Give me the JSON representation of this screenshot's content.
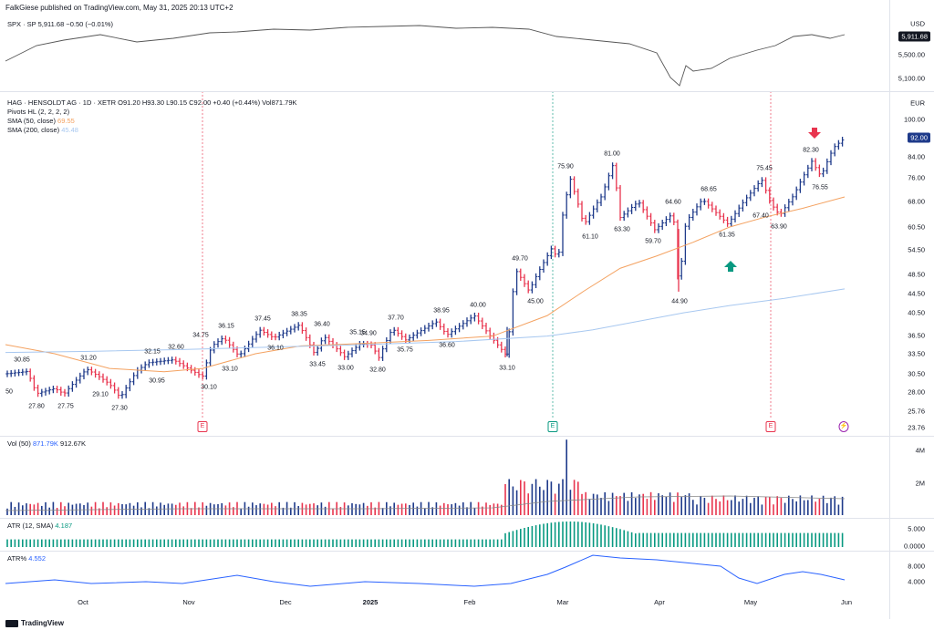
{
  "header": {
    "text": "FalkGiese published on TradingView.com, May 31, 2025 20:13 UTC+2"
  },
  "spx": {
    "label": "SPX · SP  5,911.68  −0.50 (−0.01%)",
    "currency": "USD",
    "ticks": [
      "5,500.00",
      "5,100.00"
    ],
    "last": "5,911.68"
  },
  "main": {
    "title": "HAG · HENSOLDT AG · 1D · XETR  O91.20  H93.30  L90.15  C92.00  +0.40 (+0.44%)  Vol871.79K",
    "pivots": "Pivots HL (2, 2, 2, 2)",
    "sma50_label": "SMA (50, close)",
    "sma50_value": "69.55",
    "sma200_label": "SMA (200, close)",
    "sma200_value": "45.48",
    "currency": "EUR",
    "last_price": "92.00",
    "price_ticks": [
      "100.00",
      "84.00",
      "76.00",
      "68.00",
      "60.50",
      "54.50",
      "48.50",
      "44.50",
      "40.50",
      "36.50",
      "33.50",
      "30.50",
      "28.00",
      "25.76",
      "23.76"
    ],
    "pivot_labels": [
      "30.85",
      "27.80",
      "27.75",
      "31.20",
      "29.10",
      "27.30",
      "30.95",
      "32.15",
      "32.60",
      "34.75",
      "30.10",
      "36.15",
      "33.10",
      "37.45",
      "36.10",
      "38.35",
      "33.45",
      "36.40",
      "33.00",
      "35.15",
      "34.90",
      "32.80",
      "37.70",
      "35.75",
      "38.95",
      "36.60",
      "40.00",
      "33.10",
      "49.70",
      "45.00",
      "75.90",
      "61.10",
      "81.00",
      "63.30",
      "59.70",
      "64.60",
      "44.90",
      "68.65",
      "61.35",
      "75.45",
      "67.40",
      "63.90",
      "82.30",
      "76.55",
      "50"
    ],
    "events": [
      "E",
      "E",
      "E",
      "⚡"
    ]
  },
  "volume": {
    "label": "Vol (50)",
    "value1": "871.79K",
    "value2": "912.67K",
    "ticks": [
      "4M",
      "2M"
    ]
  },
  "atr": {
    "label": "ATR (12, SMA)",
    "value": "4.187",
    "ticks": [
      "5.000",
      "0.0000"
    ]
  },
  "atrp": {
    "label": "ATR%",
    "value": "4.552",
    "ticks": [
      "8.000",
      "4.000"
    ]
  },
  "months": [
    "Oct",
    "Nov",
    "Dec",
    "2025",
    "Feb",
    "Mar",
    "Apr",
    "May",
    "Jun"
  ],
  "footer": {
    "logo": "TradingView"
  },
  "colors": {
    "up": "#1e3a8a",
    "down": "#e8344e",
    "sma50": "#f4a261",
    "sma200": "#a8c8f0",
    "volume_up": "#1e3a8a",
    "atr": "#089981",
    "atrp": "#2962ff"
  }
}
